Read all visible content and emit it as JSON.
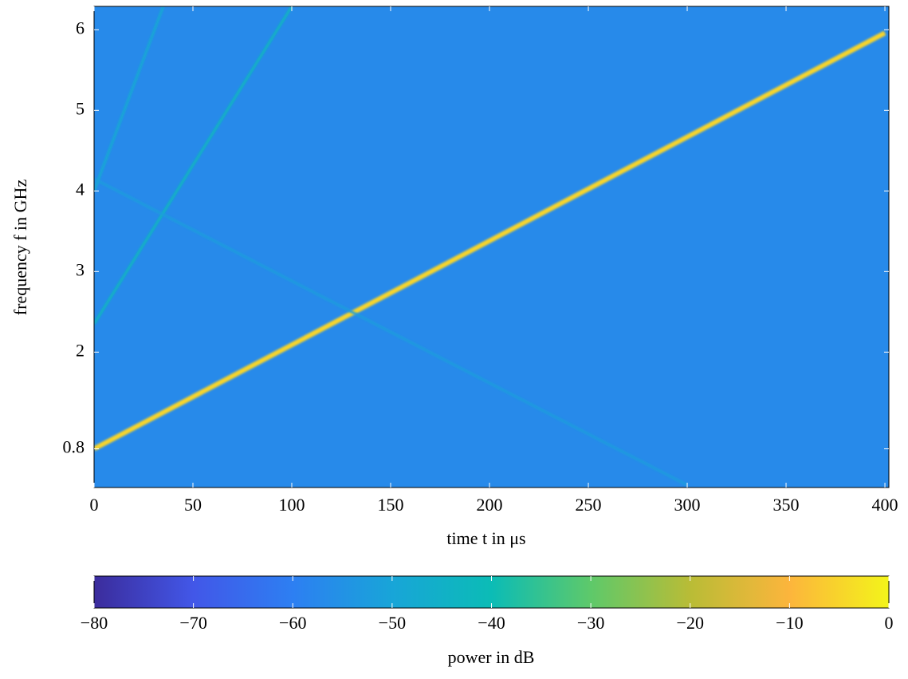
{
  "chart_data": {
    "type": "spectrogram",
    "x_label": "time t in μs",
    "y_label": "frequency f in GHz",
    "xlim": [
      0,
      402
    ],
    "ylim": [
      0.32,
      6.29
    ],
    "xticks": [
      0,
      50,
      100,
      150,
      200,
      250,
      300,
      350,
      400
    ],
    "yticks": [
      0.8,
      2,
      3,
      4,
      5,
      6
    ],
    "background_level": -57,
    "series": [
      {
        "x": [
          0,
          400
        ],
        "values": [
          0.8,
          5.96
        ],
        "level": -5
      },
      {
        "x": [
          0,
          100
        ],
        "values": [
          2.35,
          6.29
        ],
        "level": -42
      },
      {
        "x": [
          0,
          35
        ],
        "values": [
          4.0,
          6.29
        ],
        "level": -48
      },
      {
        "x": [
          0,
          300
        ],
        "values": [
          4.15,
          0.35
        ],
        "level": -52
      }
    ],
    "colorbar": {
      "label": "power in dB",
      "clim": [
        -80,
        0
      ],
      "ticks": [
        {
          "value": -80,
          "label": "−80"
        },
        {
          "value": -70,
          "label": "−70"
        },
        {
          "value": -60,
          "label": "−60"
        },
        {
          "value": -50,
          "label": "−50"
        },
        {
          "value": -40,
          "label": "−40"
        },
        {
          "value": -30,
          "label": "−30"
        },
        {
          "value": -20,
          "label": "−20"
        },
        {
          "value": -10,
          "label": "−10"
        },
        0
      ],
      "colormap": [
        "#3b2c9c",
        "#4257e8",
        "#2d7ff2",
        "#18a5d8",
        "#0bbcb6",
        "#5ec96a",
        "#b9bc36",
        "#fcb53c",
        "#f3f41a"
      ]
    }
  }
}
